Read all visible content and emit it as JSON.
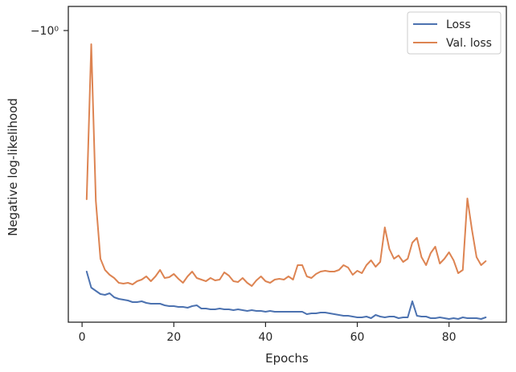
{
  "chart_data": {
    "type": "line",
    "title": "",
    "xlabel": "Epochs",
    "ylabel": "Negative log-likelihood",
    "xlim": [
      -3,
      92.5
    ],
    "x_ticks": [
      0,
      20,
      40,
      60,
      80
    ],
    "x_tick_labels": [
      "0",
      "20",
      "40",
      "60",
      "80"
    ],
    "y_tick_labels": [
      "−10⁰"
    ],
    "grid": false,
    "legend_position": "top-right",
    "series": [
      {
        "name": "Loss",
        "color": "#4c72b0",
        "x": [
          1,
          2,
          3,
          4,
          5,
          6,
          7,
          8,
          9,
          10,
          11,
          12,
          13,
          14,
          15,
          16,
          17,
          18,
          19,
          20,
          21,
          22,
          23,
          24,
          25,
          26,
          27,
          28,
          29,
          30,
          31,
          32,
          33,
          34,
          35,
          36,
          37,
          38,
          39,
          40,
          41,
          42,
          43,
          44,
          45,
          46,
          47,
          48,
          49,
          50,
          51,
          52,
          53,
          54,
          55,
          56,
          57,
          58,
          59,
          60,
          61,
          62,
          63,
          64,
          65,
          66,
          67,
          68,
          69,
          70,
          71,
          72,
          73,
          74,
          75,
          76,
          77,
          78,
          79,
          80,
          81,
          82,
          83,
          84,
          85,
          86,
          87,
          88
        ],
        "y": [
          338,
          358,
          362,
          366,
          367,
          365,
          370,
          372,
          373,
          374,
          376,
          376,
          375,
          377,
          378,
          378,
          378,
          380,
          381,
          381,
          382,
          382,
          383,
          381,
          380,
          384,
          384,
          385,
          385,
          384,
          385,
          385,
          386,
          385,
          386,
          387,
          386,
          387,
          387,
          388,
          387,
          388,
          388,
          388,
          388,
          388,
          388,
          388,
          391,
          390,
          390,
          389,
          389,
          390,
          391,
          392,
          393,
          393,
          394,
          395,
          395,
          394,
          396,
          392,
          394,
          395,
          394,
          394,
          396,
          395,
          395,
          375,
          393,
          394,
          394,
          396,
          396,
          395,
          396,
          397,
          396,
          397,
          395,
          396,
          396,
          396,
          397,
          395
        ],
        "y_unit": "screen_y_approx"
      },
      {
        "name": "Val. loss",
        "color": "#dd8452",
        "x": [
          1,
          2,
          3,
          4,
          5,
          6,
          7,
          8,
          9,
          10,
          11,
          12,
          13,
          14,
          15,
          16,
          17,
          18,
          19,
          20,
          21,
          22,
          23,
          24,
          25,
          26,
          27,
          28,
          29,
          30,
          31,
          32,
          33,
          34,
          35,
          36,
          37,
          38,
          39,
          40,
          41,
          42,
          43,
          44,
          45,
          46,
          47,
          48,
          49,
          50,
          51,
          52,
          53,
          54,
          55,
          56,
          57,
          58,
          59,
          60,
          61,
          62,
          63,
          64,
          65,
          66,
          67,
          68,
          69,
          70,
          71,
          72,
          73,
          74,
          75,
          76,
          77,
          78,
          79,
          80,
          81,
          82,
          83,
          84,
          85,
          86,
          87,
          88
        ],
        "y": [
          248,
          55,
          250,
          322,
          336,
          342,
          346,
          352,
          353,
          352,
          354,
          350,
          348,
          344,
          350,
          344,
          336,
          346,
          345,
          341,
          347,
          352,
          344,
          338,
          346,
          348,
          350,
          346,
          349,
          348,
          339,
          343,
          350,
          351,
          346,
          352,
          356,
          349,
          344,
          350,
          352,
          348,
          347,
          348,
          344,
          348,
          330,
          330,
          344,
          346,
          341,
          338,
          337,
          338,
          338,
          336,
          330,
          333,
          342,
          337,
          340,
          330,
          324,
          332,
          326,
          283,
          310,
          322,
          318,
          326,
          322,
          302,
          296,
          320,
          330,
          315,
          307,
          328,
          322,
          314,
          324,
          340,
          336,
          247,
          286,
          320,
          330,
          325
        ],
        "y_unit": "screen_y_approx"
      }
    ]
  }
}
